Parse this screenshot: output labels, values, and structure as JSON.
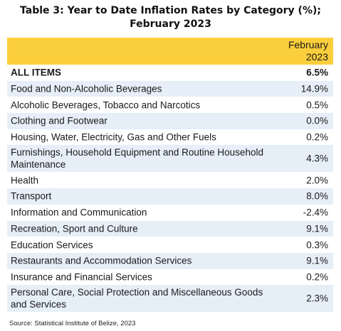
{
  "title_line1": "Table 3: Year to Date Inflation Rates by Category (%);",
  "title_line2": "February 2023",
  "column_header_line1": "February",
  "column_header_line2": "2023",
  "rows": [
    {
      "label": "ALL ITEMS",
      "value": "6.5%"
    },
    {
      "label": "Food and Non-Alcoholic Beverages",
      "value": "14.9%"
    },
    {
      "label": "Alcoholic Beverages, Tobacco and Narcotics",
      "value": "0.5%"
    },
    {
      "label": "Clothing and Footwear",
      "value": "0.0%"
    },
    {
      "label": "Housing, Water, Electricity, Gas and Other Fuels",
      "value": "0.2%"
    },
    {
      "label": "Furnishings, Household Equipment and Routine Household Maintenance",
      "value": "4.3%"
    },
    {
      "label": "Health",
      "value": "2.0%"
    },
    {
      "label": "Transport",
      "value": "8.0%"
    },
    {
      "label": "Information and Communication",
      "value": "-2.4%"
    },
    {
      "label": "Recreation, Sport and Culture",
      "value": "9.1%"
    },
    {
      "label": "Education Services",
      "value": "0.3%"
    },
    {
      "label": "Restaurants and Accommodation Services",
      "value": "9.1%"
    },
    {
      "label": "Insurance and Financial Services",
      "value": "0.2%"
    },
    {
      "label": "Personal Care, Social Protection and Miscellaneous Goods and Services",
      "value": "2.3%"
    }
  ],
  "source": "Source: Statistical Institute of Belize, 2023",
  "colors": {
    "header_bg": "#fbce3c",
    "shade_bg": "#e6eff8"
  }
}
